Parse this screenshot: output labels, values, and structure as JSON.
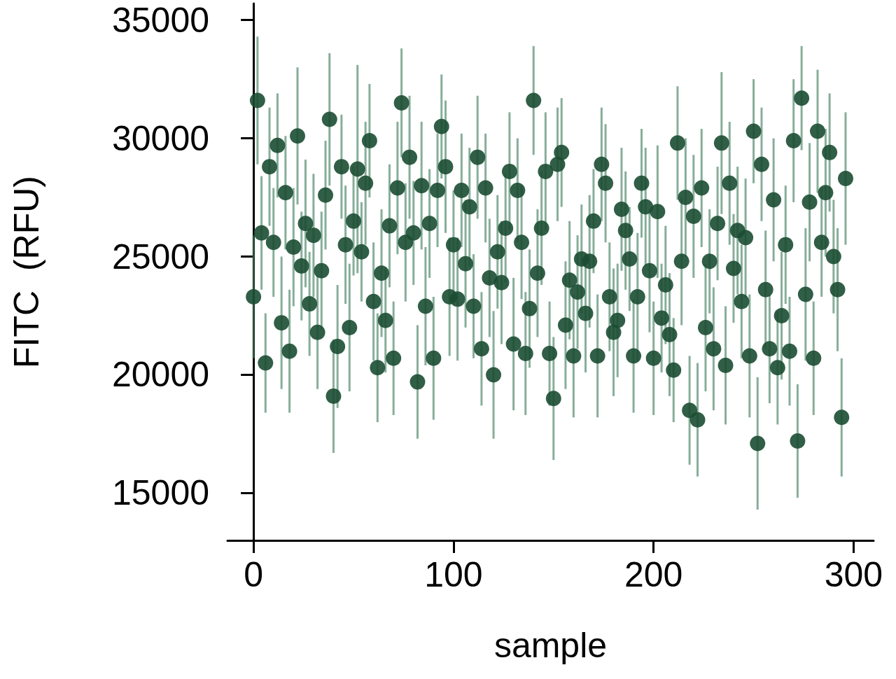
{
  "chart_data": {
    "type": "scatter",
    "xlabel": "sample",
    "ylabel": "FITC  (RFU)",
    "color": "#1b4d32",
    "marker": "circle",
    "grid": false,
    "xlim": [
      -13,
      310
    ],
    "xticks": [
      0,
      100,
      200,
      300
    ],
    "ylim": [
      13000,
      35700
    ],
    "yticks": [
      15000,
      20000,
      25000,
      30000,
      35000
    ],
    "x": [
      0,
      2,
      4,
      6,
      8,
      10,
      12,
      14,
      16,
      18,
      20,
      22,
      24,
      26,
      28,
      30,
      32,
      34,
      36,
      38,
      40,
      42,
      44,
      46,
      48,
      50,
      52,
      54,
      56,
      58,
      60,
      62,
      64,
      66,
      68,
      70,
      72,
      74,
      76,
      78,
      80,
      82,
      84,
      86,
      88,
      90,
      92,
      94,
      96,
      98,
      100,
      102,
      104,
      106,
      108,
      110,
      112,
      114,
      116,
      118,
      120,
      122,
      124,
      126,
      128,
      130,
      132,
      134,
      136,
      138,
      140,
      142,
      144,
      146,
      148,
      150,
      152,
      154,
      156,
      158,
      160,
      162,
      164,
      166,
      168,
      170,
      172,
      174,
      176,
      178,
      180,
      182,
      184,
      186,
      188,
      190,
      192,
      194,
      196,
      198,
      200,
      202,
      204,
      206,
      208,
      210,
      212,
      214,
      216,
      218,
      220,
      222,
      224,
      226,
      228,
      230,
      232,
      234,
      236,
      238,
      240,
      242,
      244,
      246,
      248,
      250,
      252,
      254,
      256,
      258,
      260,
      262,
      264,
      266,
      268,
      270,
      272,
      274,
      276,
      278,
      280,
      282,
      284,
      286,
      288,
      290,
      292,
      294,
      296
    ],
    "values": [
      23300,
      31600,
      26000,
      20500,
      28800,
      25600,
      29700,
      22200,
      27700,
      21000,
      25400,
      30100,
      24600,
      26400,
      23000,
      25900,
      21800,
      24400,
      27600,
      30800,
      19100,
      21200,
      28800,
      25500,
      22000,
      26500,
      28700,
      25200,
      28100,
      29900,
      23100,
      20300,
      24300,
      22300,
      26300,
      20700,
      27900,
      31500,
      25600,
      29200,
      26000,
      19700,
      28000,
      22900,
      26400,
      20700,
      27800,
      30500,
      28800,
      23300,
      25500,
      23200,
      27800,
      24700,
      27100,
      22900,
      29200,
      21100,
      27900,
      24100,
      20000,
      25200,
      23900,
      26200,
      28600,
      21300,
      27800,
      25600,
      20900,
      22800,
      31600,
      24300,
      26200,
      28600,
      20900,
      19000,
      28900,
      29400,
      22100,
      24000,
      20800,
      23500,
      24900,
      22600,
      24800,
      26500,
      20800,
      28900,
      28100,
      23300,
      21800,
      22300,
      27000,
      26100,
      24900,
      20800,
      23300,
      28100,
      27100,
      24400,
      20700,
      26900,
      22400,
      23800,
      21700,
      20200,
      29800,
      24800,
      27500,
      18500,
      26700,
      18100,
      27900,
      22000,
      24800,
      21100,
      26400,
      29800,
      20400,
      28100,
      24500,
      26100,
      23100,
      25800,
      20800,
      30300,
      17100,
      28900,
      23600,
      21100,
      27400,
      20300,
      22500,
      25500,
      21000,
      29900,
      17200,
      31700,
      23400,
      27300,
      20700,
      30300,
      25600,
      27700,
      29400,
      25000,
      23600,
      18200,
      28300
    ],
    "errors": [
      2600,
      2700,
      2400,
      2100,
      2500,
      2300,
      2200,
      2800,
      2400,
      2600,
      2500,
      2900,
      2300,
      2700,
      2200,
      2600,
      2400,
      2500,
      2300,
      2800,
      2400,
      2600,
      2200,
      2500,
      2700,
      2300,
      4400,
      2100,
      2600,
      2400,
      2500,
      2300,
      2700,
      2200,
      2600,
      2400,
      2800,
      2300,
      2500,
      2600,
      2200,
      2400,
      2700,
      2500,
      2300,
      2600,
      2400,
      2200,
      2800,
      2500,
      2300,
      2600,
      2400,
      2700,
      2500,
      2200,
      2600,
      2400,
      2300,
      2500,
      2700,
      2400,
      2600,
      2300,
      2500,
      2800,
      2200,
      2400,
      2600,
      2500,
      2300,
      2700,
      2400,
      2500,
      2200,
      2600,
      2400,
      2300,
      2700,
      2500,
      2600,
      2400,
      2300,
      2500,
      2800,
      2200,
      2600,
      2400,
      2500,
      2300,
      2700,
      2400,
      2600,
      2500,
      2200,
      2400,
      2700,
      2300,
      2500,
      2600,
      2400,
      2800,
      2300,
      2500,
      2600,
      2200,
      2400,
      2700,
      2500,
      2300,
      2600,
      2400,
      2500,
      2700,
      2200,
      2600,
      2400,
      3000,
      2500,
      2600,
      2300,
      2700,
      2400,
      2500,
      2600,
      2200,
      2800,
      2400,
      2500,
      2300,
      2600,
      2400,
      2700,
      2500,
      2300,
      2600,
      2400,
      2200,
      2800,
      2500,
      2400,
      2600,
      2300,
      2700,
      2500,
      2400,
      2600,
      2500,
      2800
    ]
  }
}
